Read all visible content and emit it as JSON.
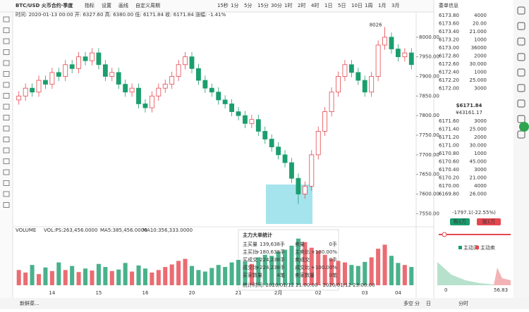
{
  "toolbar": {
    "symbol": "BTC/USD 火币合约·季度",
    "tools": [
      "指标",
      "设置",
      "画线",
      "自定义周期"
    ],
    "intervals": [
      "15秒",
      "1分",
      "5分",
      "15分",
      "30分",
      "1时",
      "2时",
      "4时",
      "1日",
      "5日",
      "10日",
      "1周",
      "1月",
      "3月"
    ]
  },
  "ohlc_line": "时间: 2020-01-13 00:00  开: 6327.60  高: 6380.00  低: 6171.84  收: 6171.84  涨幅: -1.41%",
  "chart_data": {
    "type": "candlestick",
    "categories": [
      null,
      null,
      null,
      null,
      null,
      "14",
      null,
      null,
      null,
      null,
      null,
      null,
      "15",
      null,
      null,
      null,
      null,
      null,
      null,
      "16",
      null,
      null,
      null,
      null,
      null,
      null,
      "20",
      null,
      null,
      null,
      null,
      null,
      null,
      "21",
      null,
      null,
      null,
      null,
      null,
      "2月",
      null,
      null,
      null,
      null,
      null,
      "02",
      null,
      null,
      null,
      null,
      null,
      null,
      "03",
      null,
      null,
      null,
      null,
      "04",
      null,
      null
    ],
    "open": [
      7840,
      7850,
      7870,
      7860,
      7890,
      7880,
      7910,
      7900,
      7930,
      7920,
      7950,
      7940,
      7960,
      7930,
      7900,
      7910,
      7880,
      7860,
      7870,
      7830,
      7820,
      7850,
      7870,
      7880,
      7900,
      7930,
      7950,
      7920,
      7890,
      7870,
      7860,
      7840,
      7830,
      7810,
      7800,
      7780,
      7790,
      7760,
      7740,
      7720,
      7700,
      7680,
      7640,
      7600,
      7620,
      7700,
      7760,
      7810,
      7860,
      7900,
      7930,
      7910,
      7890,
      7860,
      7900,
      7980,
      8000,
      7970,
      7950,
      7960
    ],
    "high": [
      7862,
      7882,
      7882,
      7902,
      7902,
      7922,
      7922,
      7942,
      7942,
      7962,
      7962,
      7972,
      7972,
      7942,
      7922,
      7922,
      7892,
      7882,
      7882,
      7842,
      7862,
      7882,
      7892,
      7912,
      7942,
      7962,
      7962,
      7932,
      7902,
      7882,
      7872,
      7852,
      7842,
      7822,
      7812,
      7802,
      7802,
      7772,
      7752,
      7732,
      7712,
      7692,
      7652,
      7632,
      7712,
      7772,
      7822,
      7872,
      7912,
      7942,
      7942,
      7922,
      7902,
      7912,
      7992,
      8026,
      8012,
      7982,
      7972,
      7972
    ],
    "low": [
      7828,
      7838,
      7848,
      7848,
      7868,
      7868,
      7888,
      7888,
      7908,
      7908,
      7928,
      7928,
      7918,
      7888,
      7888,
      7868,
      7848,
      7848,
      7818,
      7808,
      7808,
      7838,
      7858,
      7868,
      7888,
      7918,
      7908,
      7878,
      7858,
      7848,
      7828,
      7818,
      7798,
      7788,
      7768,
      7768,
      7748,
      7728,
      7708,
      7688,
      7668,
      7628,
      7575,
      7588,
      7608,
      7688,
      7748,
      7798,
      7848,
      7888,
      7898,
      7878,
      7848,
      7848,
      7888,
      7968,
      7958,
      7938,
      7938,
      7918
    ],
    "close": [
      7850,
      7870,
      7860,
      7890,
      7880,
      7910,
      7900,
      7930,
      7920,
      7950,
      7940,
      7960,
      7930,
      7900,
      7910,
      7880,
      7860,
      7870,
      7830,
      7820,
      7850,
      7870,
      7880,
      7900,
      7930,
      7950,
      7920,
      7890,
      7870,
      7860,
      7840,
      7830,
      7810,
      7800,
      7780,
      7790,
      7760,
      7740,
      7720,
      7700,
      7680,
      7640,
      7600,
      7620,
      7700,
      7760,
      7810,
      7860,
      7900,
      7930,
      7910,
      7890,
      7860,
      7900,
      7980,
      8000,
      7970,
      7950,
      7960,
      7930
    ],
    "up_color": "#e5474f",
    "down_color": "#1b9e6e",
    "ylim": [
      7520,
      8050
    ],
    "yticks": [
      {
        "value": 7550,
        "label": "7550.00"
      },
      {
        "value": 7600,
        "label": "7600.00"
      },
      {
        "value": 7650,
        "label": "7650.00"
      },
      {
        "value": 7700,
        "label": "7700.00"
      },
      {
        "value": 7750,
        "label": "7750.00"
      },
      {
        "value": 7800,
        "label": "7800.00"
      },
      {
        "value": 7850,
        "label": "7850.00"
      },
      {
        "value": 7900,
        "label": "7900.00"
      },
      {
        "value": 7950,
        "label": "7950.00"
      },
      {
        "value": 8000,
        "label": "8000.00"
      }
    ],
    "high_label": "8026",
    "volume": {
      "legend": [
        "VOLUME",
        "VOL:PS:263,456.0000",
        "MA5:385,456.0000",
        "MA10:356,333.0000"
      ],
      "values": [
        30,
        25,
        40,
        22,
        35,
        28,
        45,
        30,
        38,
        26,
        33,
        29,
        42,
        36,
        28,
        31,
        44,
        27,
        39,
        33,
        25,
        30,
        36,
        41,
        48,
        52,
        38,
        30,
        27,
        34,
        40,
        36,
        45,
        50,
        47,
        42,
        55,
        60,
        58,
        66,
        70,
        78,
        92,
        85,
        74,
        68,
        60,
        52,
        48,
        45,
        40,
        38,
        46,
        55,
        72,
        80,
        58,
        44,
        40,
        36
      ],
      "ylim": [
        0,
        100
      ]
    }
  },
  "popup": {
    "title": "主力大单统计",
    "rows": [
      [
        "主买量",
        "139,638手",
        "卖量",
        "0手"
      ],
      [
        "主买比",
        "+180,638手",
        "主卖比",
        "+100.00%"
      ],
      [
        "买成交",
        "224,238手",
        "卖成交",
        "0手"
      ],
      [
        "成交比",
        "+224,238手",
        "成交比",
        "+100.00%"
      ],
      [
        "买家数量",
        "4笔",
        "卖家数量",
        "0笔"
      ]
    ],
    "footer": "统计时间: 2020/01/12 21:00:00 - 2020/01/12 23:00:00"
  },
  "order_book": {
    "title": "委单信息",
    "asks": [
      [
        "6173.80",
        "4000"
      ],
      [
        "6173.60",
        "20.00"
      ],
      [
        "6173.40",
        "21.000"
      ],
      [
        "6173.20",
        "1000"
      ],
      [
        "6173.00",
        "36000"
      ],
      [
        "6172.80",
        "2000"
      ],
      [
        "6172.60",
        "30.000"
      ],
      [
        "6172.40",
        "1000"
      ],
      [
        "6172.20",
        "25.000"
      ],
      [
        "6172.00",
        "3000"
      ]
    ],
    "last_price": "$6171.84",
    "last_price_cny": "¥43161.17",
    "bids": [
      [
        "6171.60",
        "3000"
      ],
      [
        "6171.40",
        "25.000"
      ],
      [
        "6171.20",
        "2000"
      ],
      [
        "6171.00",
        "30.000"
      ],
      [
        "6170.80",
        "1000"
      ],
      [
        "6170.60",
        "45.000"
      ],
      [
        "6170.40",
        "3000"
      ],
      [
        "6170.20",
        "21.000"
      ],
      [
        "6170.00",
        "4000"
      ],
      [
        "6169.80",
        "26.000"
      ]
    ]
  },
  "summary": {
    "change": "-1797.1(-22.55%)",
    "buy_button": "购1万",
    "sell_button": "抛1万",
    "legend": [
      "主动买",
      "主动卖"
    ],
    "axis": [
      "0",
      "56.83"
    ]
  },
  "footer": {
    "left": "新鲜菜...",
    "right": [
      "多空",
      "分",
      "日",
      "分时"
    ]
  }
}
